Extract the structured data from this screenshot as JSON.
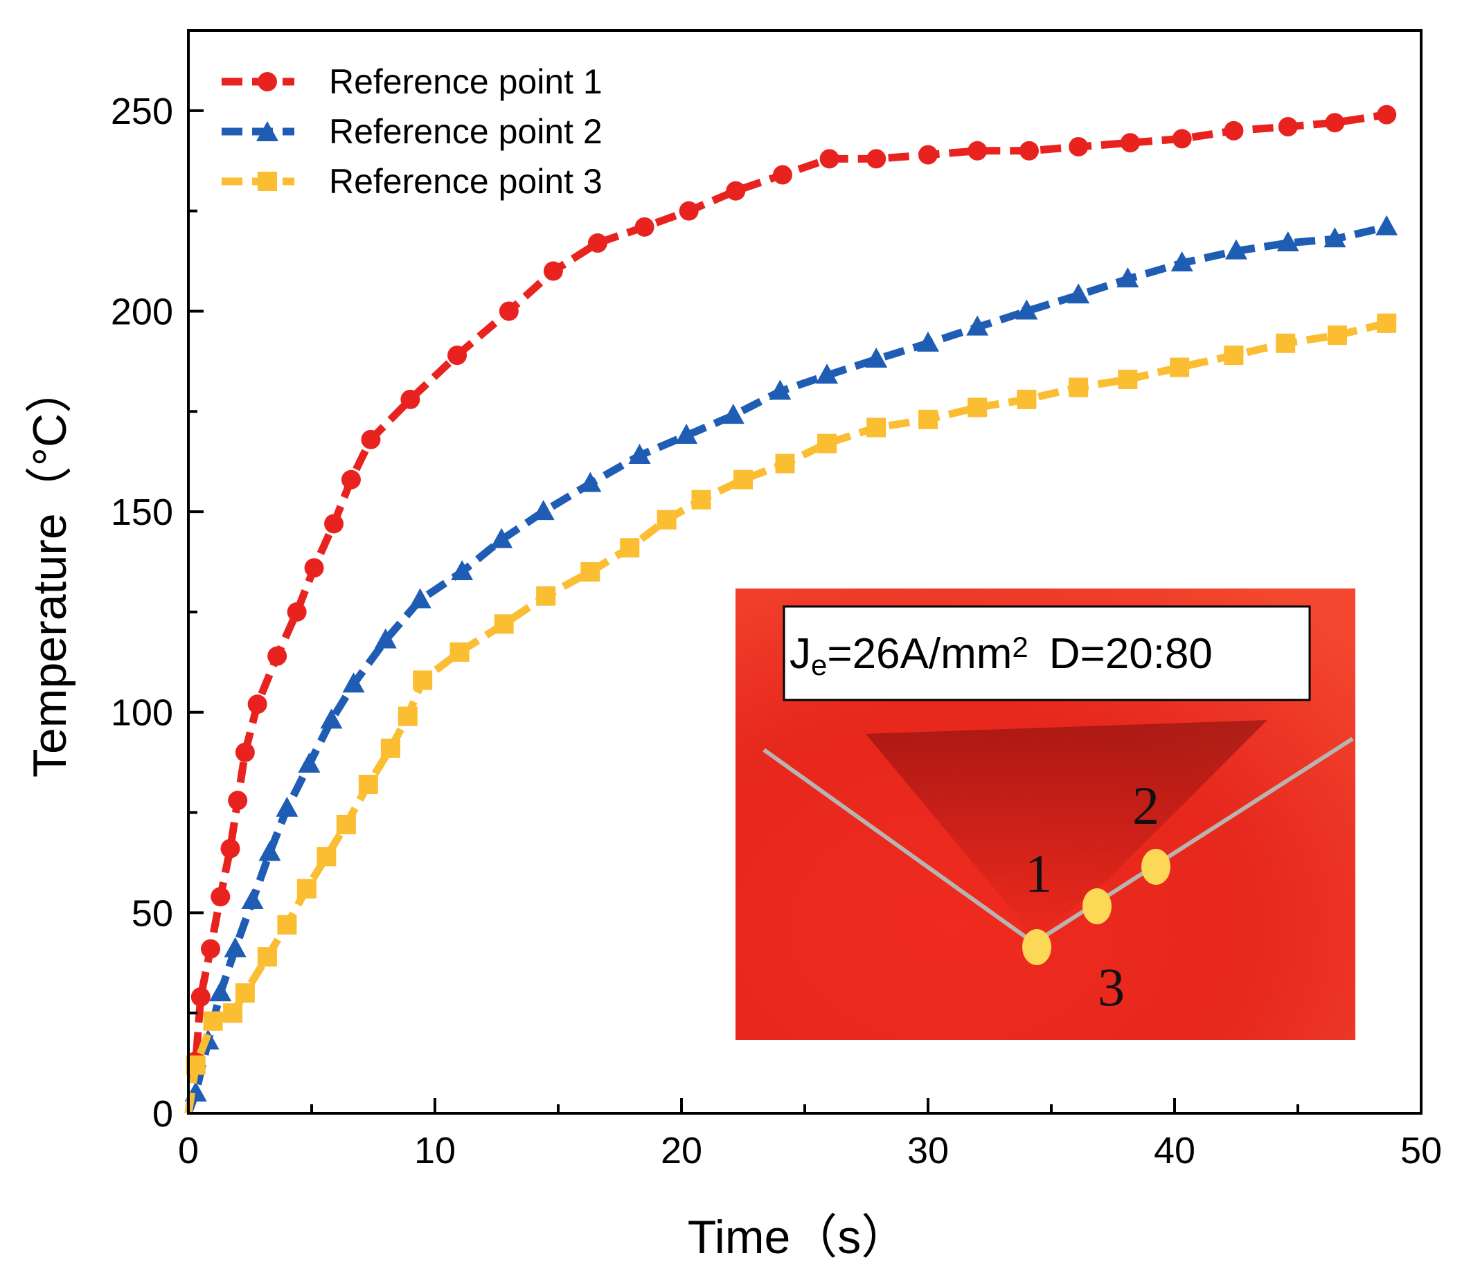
{
  "chart_data": {
    "type": "line",
    "title": "",
    "xlabel": "Time（s）",
    "ylabel": "Temperature（°C）",
    "xlim": [
      0,
      50
    ],
    "ylim": [
      0,
      270
    ],
    "x_ticks": [
      0,
      10,
      20,
      30,
      40,
      50
    ],
    "y_ticks": [
      0,
      50,
      100,
      150,
      200,
      250
    ],
    "grid": false,
    "legend_position": "top-left",
    "series": [
      {
        "name": "Reference point 1",
        "color": "#e8231f",
        "marker": "circle",
        "line_style": "dashed",
        "x": [
          0.0,
          0.3,
          0.5,
          0.9,
          1.3,
          1.7,
          2.0,
          2.3,
          2.8,
          3.6,
          4.4,
          5.1,
          5.9,
          6.6,
          7.4,
          9.0,
          10.9,
          13.0,
          14.8,
          16.6,
          18.5,
          20.3,
          22.2,
          24.1,
          26.0,
          27.9,
          30.0,
          32.0,
          34.1,
          36.1,
          38.2,
          40.3,
          42.4,
          44.6,
          46.5,
          48.6
        ],
        "y": [
          0,
          13,
          29,
          41,
          54,
          66,
          78,
          90,
          102,
          114,
          125,
          136,
          147,
          158,
          168,
          178,
          189,
          200,
          210,
          217,
          221,
          225,
          230,
          234,
          238,
          238,
          239,
          240,
          240,
          241,
          242,
          243,
          245,
          246,
          247,
          249
        ]
      },
      {
        "name": "Reference point 2",
        "color": "#1f5cb4",
        "marker": "triangle",
        "line_style": "dashed",
        "x": [
          0.0,
          0.3,
          0.8,
          1.3,
          1.9,
          2.6,
          3.3,
          4.0,
          4.9,
          5.8,
          6.7,
          8.0,
          9.4,
          11.1,
          12.7,
          14.4,
          16.3,
          18.3,
          20.2,
          22.1,
          24.0,
          25.9,
          27.9,
          30.0,
          32.0,
          34.0,
          36.1,
          38.1,
          40.3,
          42.5,
          44.6,
          46.5,
          48.6
        ],
        "y": [
          0,
          5,
          18,
          30,
          41,
          53,
          65,
          76,
          87,
          98,
          107,
          118,
          128,
          135,
          143,
          150,
          157,
          164,
          169,
          174,
          180,
          184,
          188,
          192,
          196,
          200,
          204,
          208,
          212,
          215,
          217,
          218,
          221
        ]
      },
      {
        "name": "Reference point 3",
        "color": "#fbbd32",
        "marker": "square",
        "line_style": "dashed",
        "x": [
          0.0,
          0.3,
          1.0,
          1.8,
          2.3,
          3.2,
          4.0,
          4.8,
          5.6,
          6.4,
          7.3,
          8.2,
          8.9,
          9.5,
          11.0,
          12.8,
          14.5,
          16.3,
          17.9,
          19.4,
          20.8,
          22.5,
          24.2,
          25.9,
          27.9,
          30.0,
          32.0,
          34.0,
          36.1,
          38.1,
          40.2,
          42.4,
          44.5,
          46.6,
          48.6
        ],
        "y": [
          0,
          12,
          23,
          25,
          30,
          39,
          47,
          56,
          64,
          72,
          82,
          91,
          99,
          108,
          115,
          122,
          129,
          135,
          141,
          148,
          153,
          158,
          162,
          167,
          171,
          173,
          176,
          178,
          181,
          183,
          186,
          189,
          192,
          194,
          197
        ]
      }
    ],
    "inset": {
      "label_j": "J",
      "label_sub": "e",
      "label_value": "=26A/mm",
      "label_sup": "2",
      "label_d": "D=20:80",
      "points": [
        {
          "id": "1",
          "color": "#fcd857"
        },
        {
          "id": "2",
          "color": "#fcd857"
        },
        {
          "id": "3",
          "color": "#fcd857"
        }
      ]
    }
  }
}
